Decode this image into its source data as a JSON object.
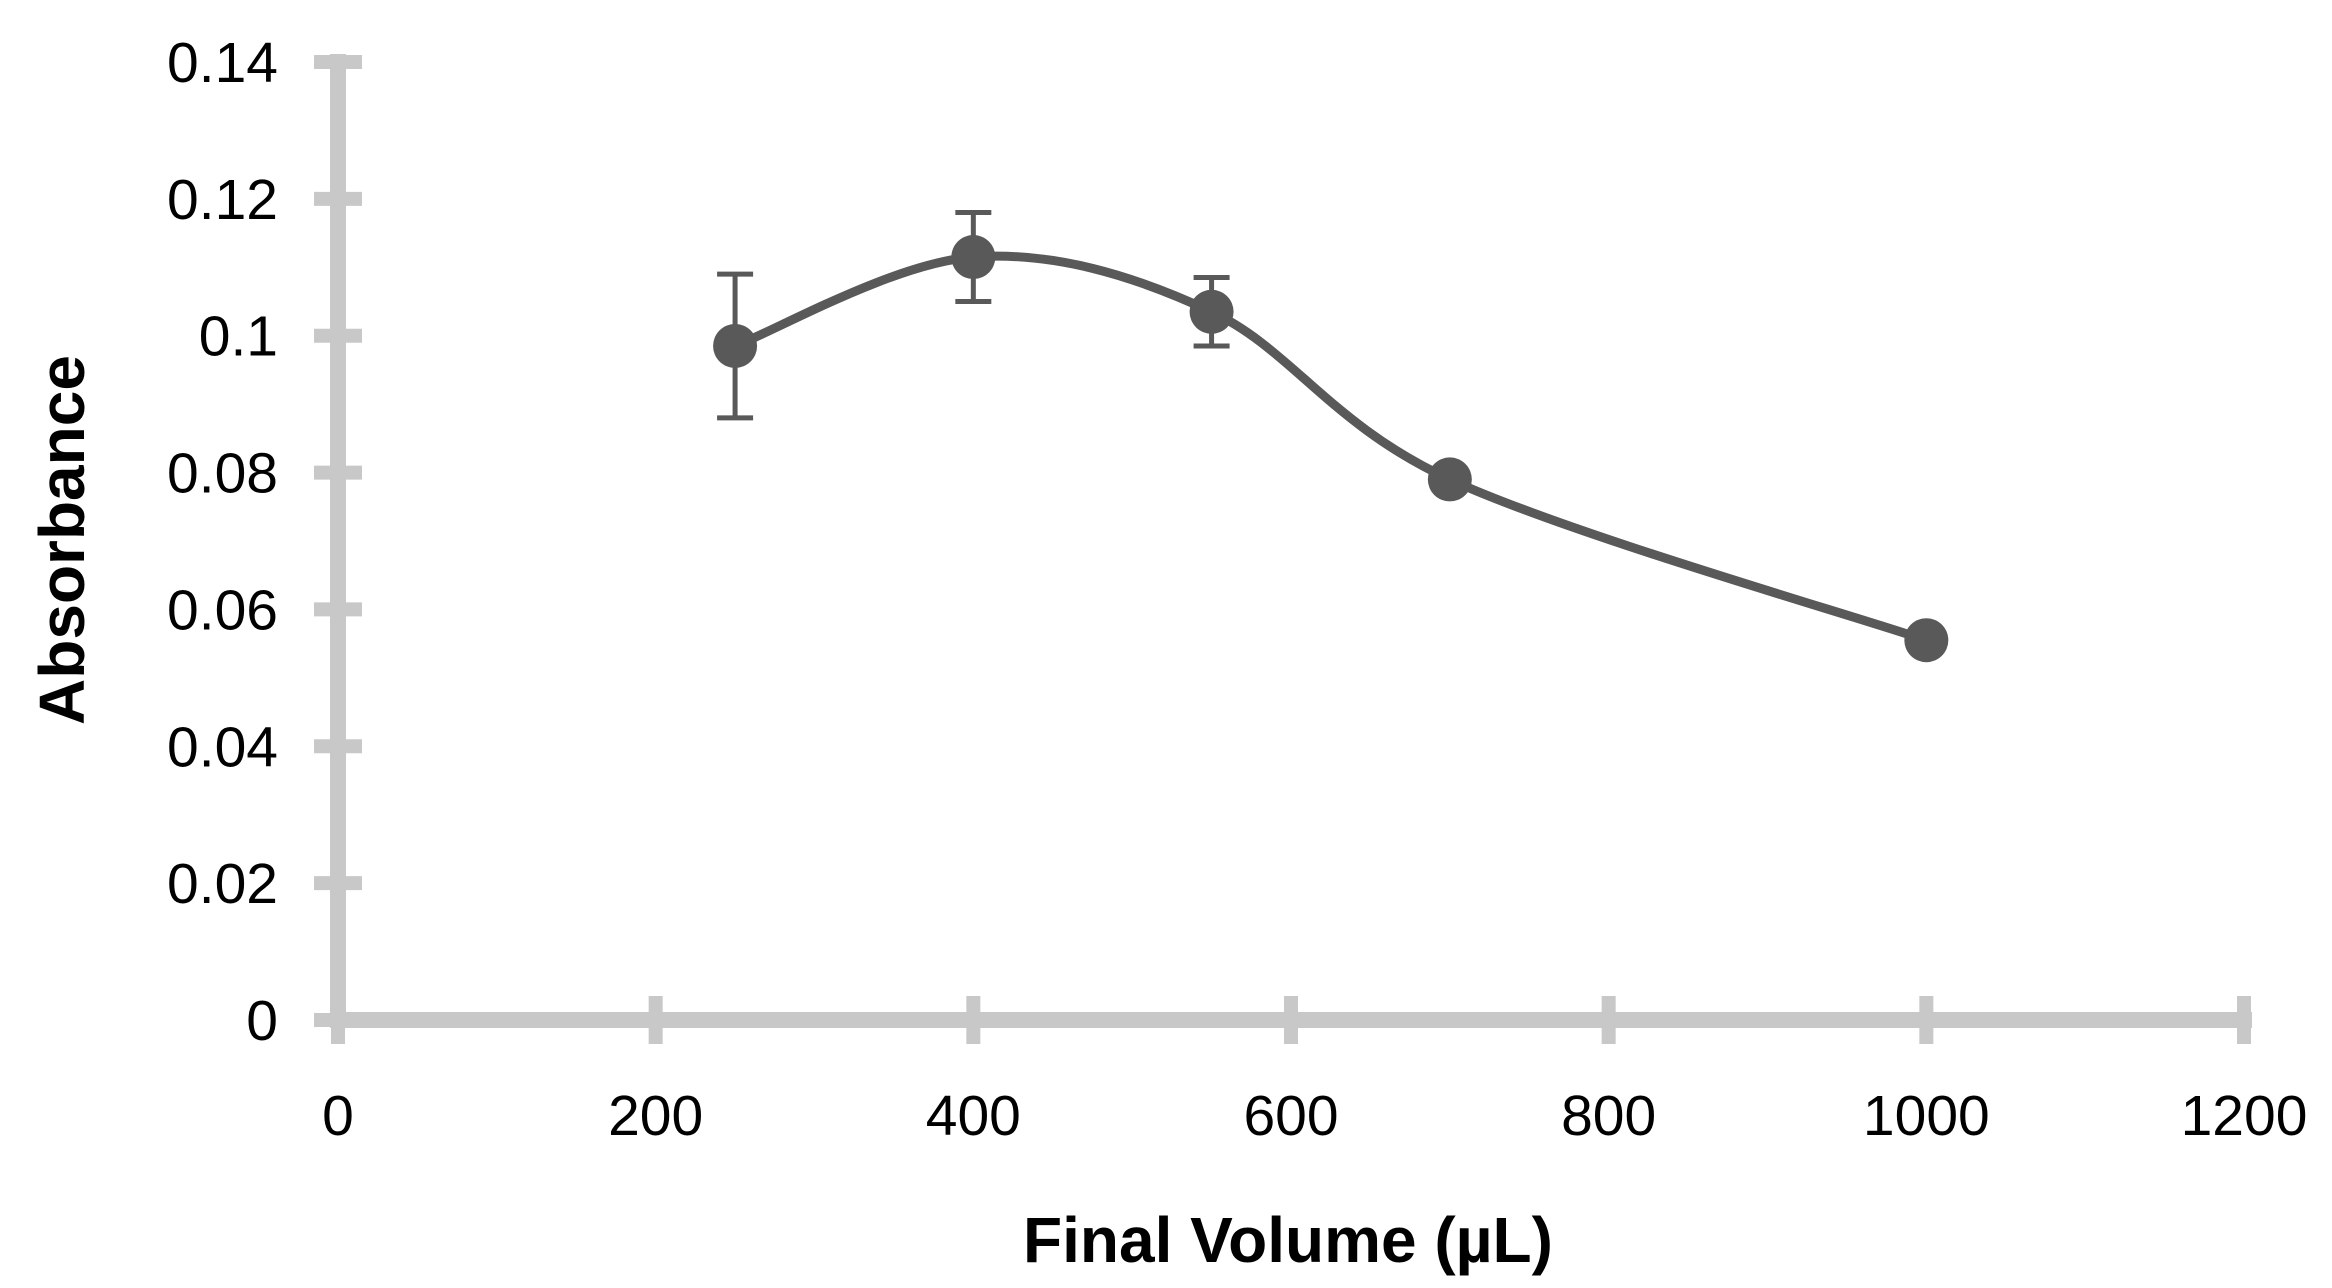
{
  "chart_data": {
    "type": "line",
    "title": "",
    "xlabel": "Final Volume (µL)",
    "ylabel": "Absorbance",
    "xlim": [
      0,
      1200
    ],
    "ylim": [
      0,
      0.14
    ],
    "x_ticks": [
      "0",
      "200",
      "400",
      "600",
      "800",
      "1000",
      "1200"
    ],
    "y_ticks": [
      "0",
      "0.02",
      "0.04",
      "0.06",
      "0.08",
      "0.1",
      "0.12",
      "0.14"
    ],
    "grid": false,
    "legend": "none",
    "smooth": true,
    "colors": {
      "axis": "#c8c8c8",
      "series": "#595959"
    },
    "series": [
      {
        "x": [
          250,
          400,
          550,
          700,
          1000
        ],
        "y": [
          0.0985,
          0.1115,
          0.1035,
          0.079,
          0.0555
        ],
        "error": [
          0.0105,
          0.0065,
          0.005,
          0.0015,
          0.0
        ]
      }
    ]
  }
}
